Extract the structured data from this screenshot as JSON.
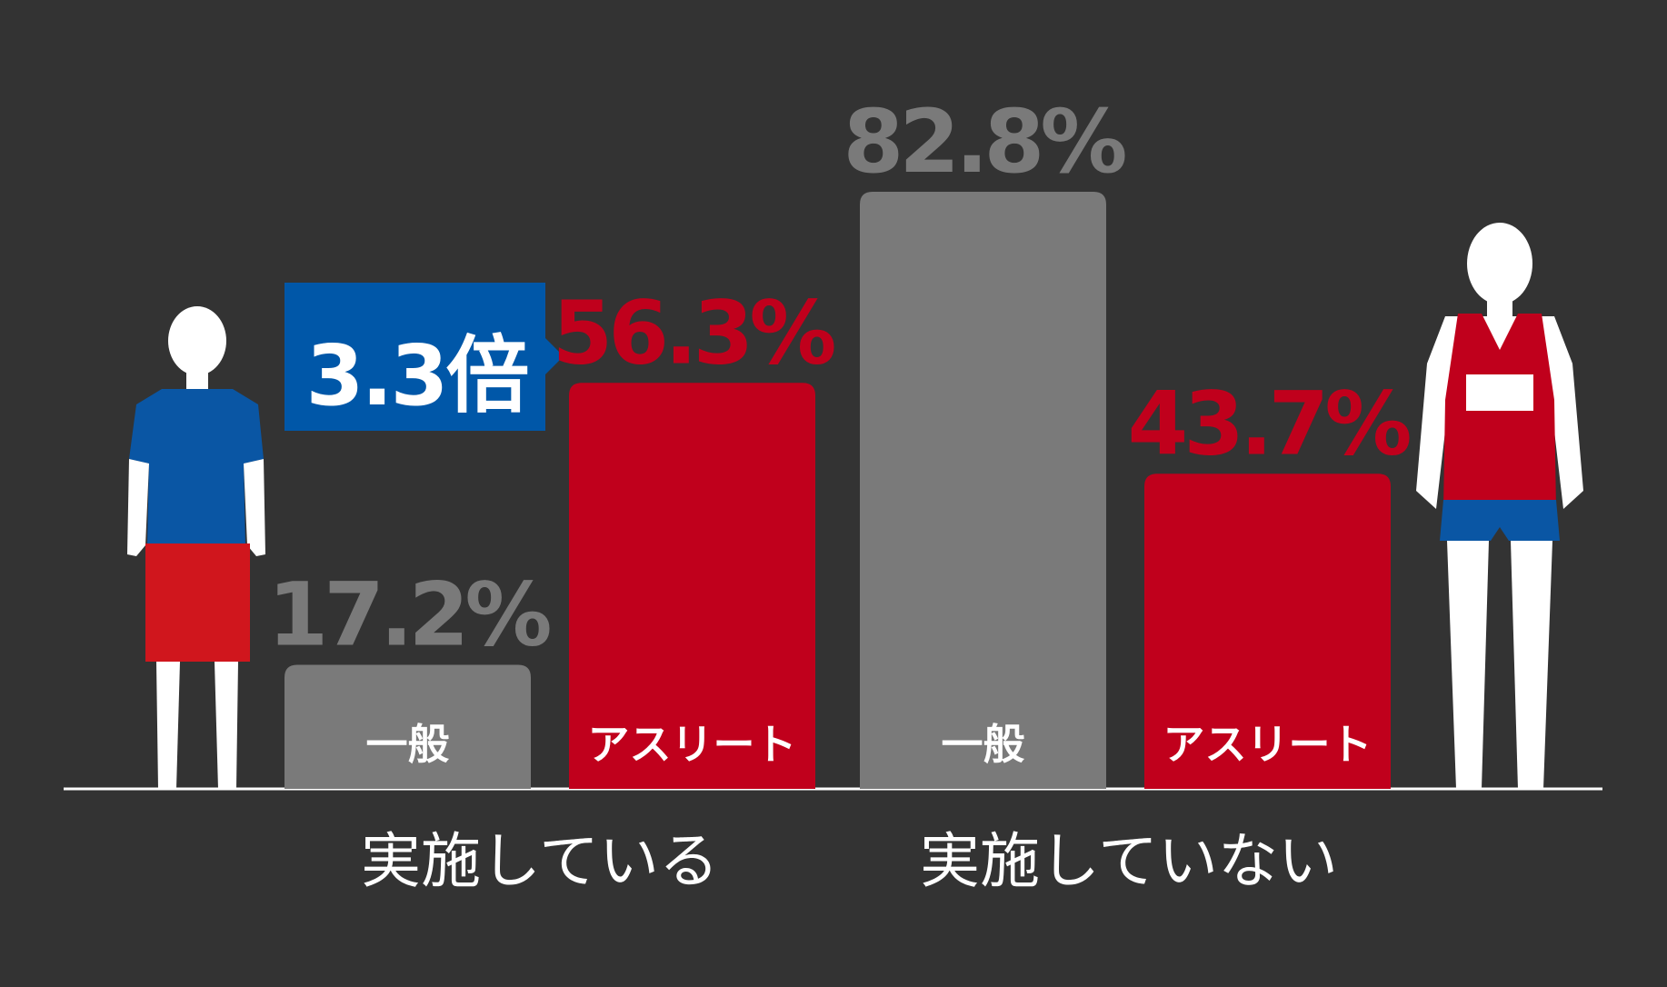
{
  "chart_data": {
    "type": "bar",
    "categories": [
      "実施している",
      "実施していない"
    ],
    "series": [
      {
        "name": "一般",
        "color": "#7a7a7a",
        "values": [
          17.2,
          82.8
        ],
        "value_labels": [
          "17.2%",
          "82.8%"
        ]
      },
      {
        "name": "アスリート",
        "color": "#c0001c",
        "values": [
          56.3,
          43.7
        ],
        "value_labels": [
          "56.3%",
          "43.7%"
        ]
      }
    ],
    "annotation": "3.3倍"
  }
}
